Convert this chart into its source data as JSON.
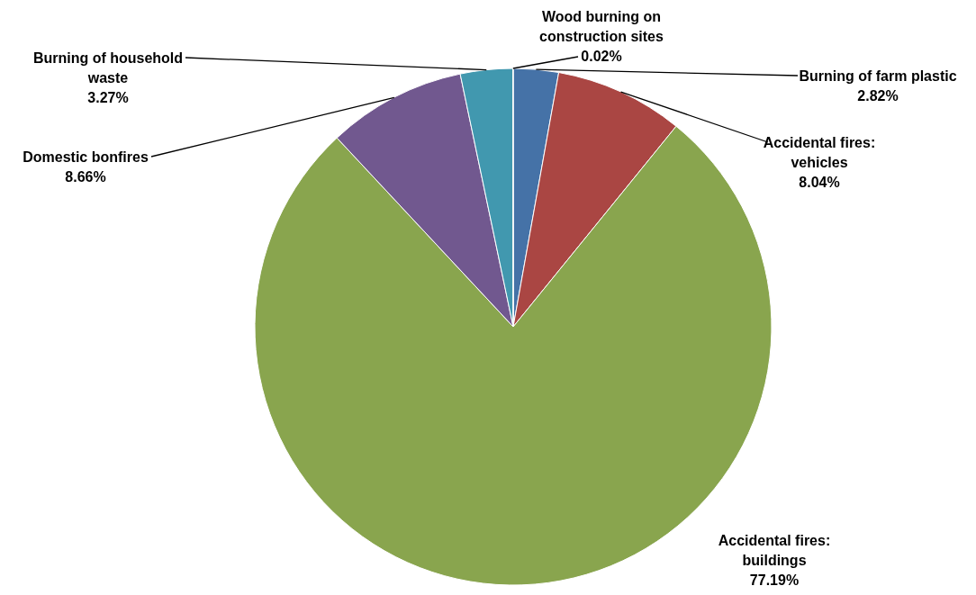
{
  "chart_data": {
    "type": "pie",
    "categories": [
      "Burning of farm plastic",
      "Accidental fires: vehicles",
      "Accidental fires: buildings",
      "Domestic bonfires",
      "Burning of household waste",
      "Wood burning on construction sites"
    ],
    "values": [
      2.82,
      8.04,
      77.19,
      8.66,
      3.27,
      0.02
    ],
    "value_labels": [
      "2.82%",
      "8.04%",
      "77.19%",
      "8.66%",
      "3.27%",
      "0.02%"
    ],
    "colors": [
      "#4572a7",
      "#aa4643",
      "#89a54e",
      "#71588f",
      "#4198af",
      "#db843d"
    ],
    "legend": false
  }
}
